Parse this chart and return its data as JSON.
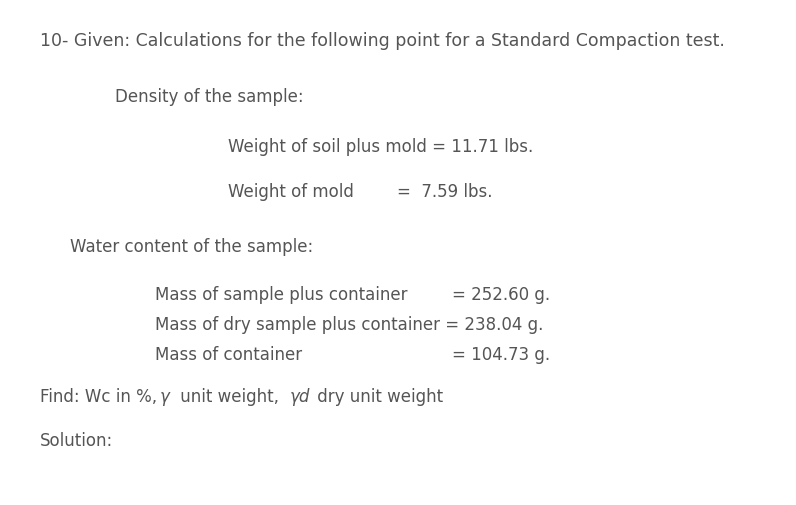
{
  "background_color": "#ffffff",
  "text_color": "#555555",
  "title_line": "10- Given: Calculations for the following point for a Standard Compaction test.",
  "density_header": "Density of the sample:",
  "line1_label": "Weight of soil plus mold = 11.71 lbs.",
  "line2_label_text": "Weight of mold",
  "line2_value": "=  7.59 lbs.",
  "water_header": "Water content of the sample:",
  "line3_label": "Mass of sample plus container",
  "line3_value": "= 252.60 g.",
  "line4_label": "Mass of dry sample plus container = 238.04 g.",
  "line5_label": "Mass of container",
  "line5_value": "= 104.73 g.",
  "find_prefix": "Find: Wc in %, ",
  "find_gamma": "γ",
  "find_mid": " unit weight, ",
  "find_yd": "γd",
  "find_suffix": " dry unit weight",
  "solution_line": "Solution:",
  "font_size_title": 12.5,
  "font_size_body": 12.0
}
